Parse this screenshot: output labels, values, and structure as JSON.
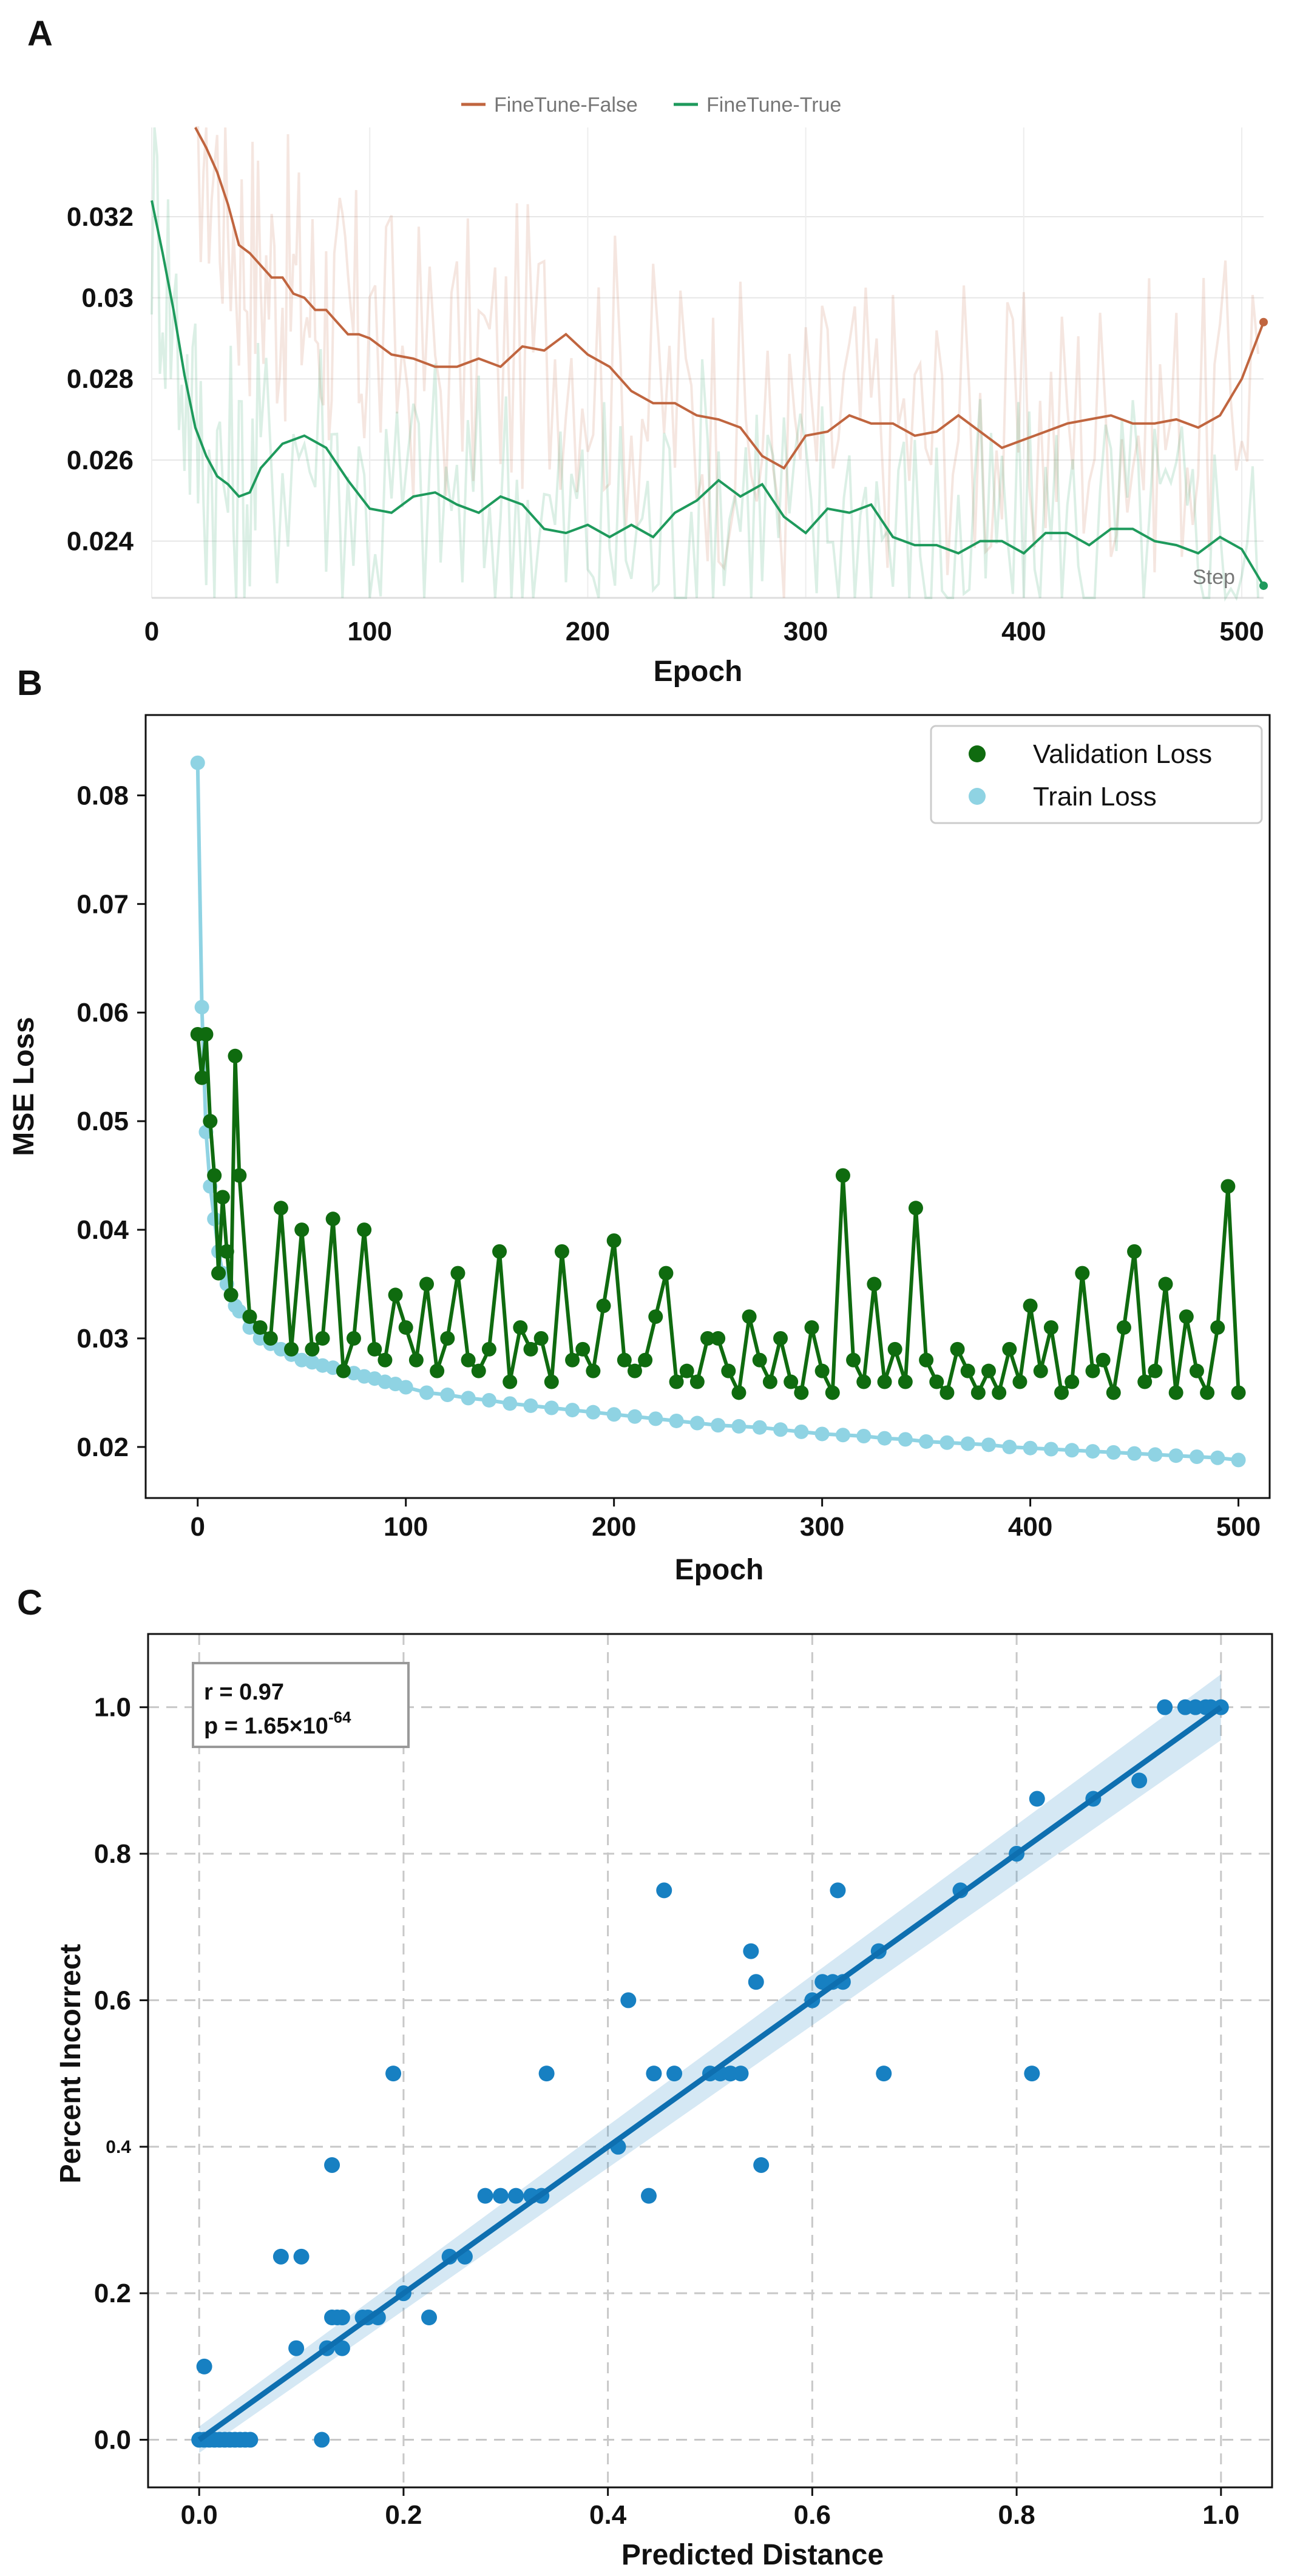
{
  "panels": [
    "A",
    "B",
    "C"
  ],
  "chart_data": [
    {
      "type": "line",
      "panel": "A",
      "title": "",
      "xlabel": "Epoch",
      "ylabel": "",
      "xlim": [
        0,
        510
      ],
      "ylim": [
        0.0226,
        0.0342
      ],
      "x_ticks": [
        0,
        100,
        200,
        300,
        400,
        500
      ],
      "y_ticks": [
        0.024,
        0.026,
        0.028,
        0.03,
        0.032
      ],
      "y_tick_labels": [
        "0.024",
        "0.026",
        "0.028",
        "0.03",
        "0.032"
      ],
      "x_tick_labels": [
        "0",
        "100",
        "200",
        "300",
        "400",
        "500"
      ],
      "legend_position": "top-center",
      "corner_note": "Step",
      "grid": true,
      "series": [
        {
          "name": "FineTune-False",
          "color": "#c0653f",
          "x": [
            20,
            25,
            30,
            35,
            40,
            45,
            50,
            55,
            60,
            65,
            70,
            75,
            80,
            85,
            90,
            95,
            100,
            110,
            120,
            130,
            140,
            150,
            160,
            170,
            180,
            190,
            200,
            210,
            220,
            230,
            240,
            250,
            260,
            270,
            280,
            290,
            300,
            310,
            320,
            330,
            340,
            350,
            360,
            370,
            380,
            390,
            400,
            410,
            420,
            430,
            440,
            450,
            460,
            470,
            480,
            490,
            500,
            510
          ],
          "values": [
            0.0345,
            0.0337,
            0.0331,
            0.0323,
            0.0313,
            0.0311,
            0.0308,
            0.0305,
            0.0305,
            0.0301,
            0.03,
            0.0297,
            0.0297,
            0.0294,
            0.0291,
            0.0291,
            0.029,
            0.0286,
            0.0285,
            0.0283,
            0.0283,
            0.0285,
            0.0283,
            0.0288,
            0.0287,
            0.0291,
            0.0286,
            0.0283,
            0.0277,
            0.0274,
            0.0274,
            0.0271,
            0.027,
            0.0268,
            0.0261,
            0.0258,
            0.0266,
            0.0267,
            0.0271,
            0.0269,
            0.0269,
            0.0266,
            0.0267,
            0.0271,
            0.0267,
            0.0263,
            0.0265,
            0.0267,
            0.0269,
            0.027,
            0.0271,
            0.0269,
            0.0269,
            0.027,
            0.0268,
            0.0271,
            0.028,
            0.0294
          ]
        },
        {
          "name": "FineTune-True",
          "color": "#1e9a5c",
          "x": [
            0,
            5,
            10,
            15,
            20,
            25,
            30,
            35,
            40,
            45,
            50,
            60,
            70,
            80,
            90,
            100,
            110,
            120,
            130,
            140,
            150,
            160,
            170,
            180,
            190,
            200,
            210,
            220,
            230,
            240,
            250,
            260,
            270,
            280,
            290,
            300,
            310,
            320,
            330,
            340,
            350,
            360,
            370,
            380,
            390,
            400,
            410,
            420,
            430,
            440,
            450,
            460,
            470,
            480,
            490,
            500,
            510
          ],
          "values": [
            0.0324,
            0.0311,
            0.0297,
            0.0281,
            0.0268,
            0.0261,
            0.0256,
            0.0254,
            0.0251,
            0.0252,
            0.0258,
            0.0264,
            0.0266,
            0.0263,
            0.0255,
            0.0248,
            0.0247,
            0.0251,
            0.0252,
            0.0249,
            0.0247,
            0.0251,
            0.0249,
            0.0243,
            0.0242,
            0.0244,
            0.0241,
            0.0244,
            0.0241,
            0.0247,
            0.025,
            0.0255,
            0.0251,
            0.0254,
            0.0246,
            0.0242,
            0.0248,
            0.0247,
            0.0249,
            0.0241,
            0.0239,
            0.0239,
            0.0237,
            0.024,
            0.024,
            0.0237,
            0.0242,
            0.0242,
            0.0239,
            0.0243,
            0.0243,
            0.024,
            0.0239,
            0.0237,
            0.0241,
            0.0238,
            0.0229
          ]
        }
      ]
    },
    {
      "type": "line",
      "panel": "B",
      "title": "",
      "xlabel": "Epoch",
      "ylabel": "MSE Loss",
      "xlim": [
        -25,
        515
      ],
      "ylim": [
        0.0153,
        0.0874
      ],
      "x_ticks": [
        0,
        100,
        200,
        300,
        400,
        500
      ],
      "x_tick_labels": [
        "0",
        "100",
        "200",
        "300",
        "400",
        "500"
      ],
      "y_ticks": [
        0.02,
        0.03,
        0.04,
        0.05,
        0.06,
        0.07,
        0.08
      ],
      "y_tick_labels": [
        "0.02",
        "0.03",
        "0.04",
        "0.05",
        "0.06",
        "0.07",
        "0.08"
      ],
      "legend_position": "top-right",
      "grid": false,
      "series": [
        {
          "name": "Validation Loss",
          "color": "#0f6b0f",
          "x": [
            0,
            2,
            4,
            6,
            8,
            10,
            12,
            14,
            16,
            18,
            20,
            25,
            30,
            35,
            40,
            45,
            50,
            55,
            60,
            65,
            70,
            75,
            80,
            85,
            90,
            95,
            100,
            105,
            110,
            115,
            120,
            125,
            130,
            135,
            140,
            145,
            150,
            155,
            160,
            165,
            170,
            175,
            180,
            185,
            190,
            195,
            200,
            205,
            210,
            215,
            220,
            225,
            230,
            235,
            240,
            245,
            250,
            255,
            260,
            265,
            270,
            275,
            280,
            285,
            290,
            295,
            300,
            305,
            310,
            315,
            320,
            325,
            330,
            335,
            340,
            345,
            350,
            355,
            360,
            365,
            370,
            375,
            380,
            385,
            390,
            395,
            400,
            405,
            410,
            415,
            420,
            425,
            430,
            435,
            440,
            445,
            450,
            455,
            460,
            465,
            470,
            475,
            480,
            485,
            490,
            495,
            500
          ],
          "values": [
            0.058,
            0.054,
            0.058,
            0.05,
            0.045,
            0.036,
            0.043,
            0.038,
            0.034,
            0.056,
            0.045,
            0.032,
            0.031,
            0.03,
            0.042,
            0.029,
            0.04,
            0.029,
            0.03,
            0.041,
            0.027,
            0.03,
            0.04,
            0.029,
            0.028,
            0.034,
            0.031,
            0.028,
            0.035,
            0.027,
            0.03,
            0.036,
            0.028,
            0.027,
            0.029,
            0.038,
            0.026,
            0.031,
            0.029,
            0.03,
            0.026,
            0.038,
            0.028,
            0.029,
            0.027,
            0.033,
            0.039,
            0.028,
            0.027,
            0.028,
            0.032,
            0.036,
            0.026,
            0.027,
            0.026,
            0.03,
            0.03,
            0.027,
            0.025,
            0.032,
            0.028,
            0.026,
            0.03,
            0.026,
            0.025,
            0.031,
            0.027,
            0.025,
            0.045,
            0.028,
            0.026,
            0.035,
            0.026,
            0.029,
            0.026,
            0.042,
            0.028,
            0.026,
            0.025,
            0.029,
            0.027,
            0.025,
            0.027,
            0.025,
            0.029,
            0.026,
            0.033,
            0.027,
            0.031,
            0.025,
            0.026,
            0.036,
            0.027,
            0.028,
            0.025,
            0.031,
            0.038,
            0.026,
            0.027,
            0.035,
            0.025,
            0.032,
            0.027,
            0.025,
            0.031,
            0.044,
            0.025
          ]
        },
        {
          "name": "Train Loss",
          "color": "#8fd3e3",
          "x": [
            0,
            2,
            4,
            6,
            8,
            10,
            12,
            14,
            16,
            18,
            20,
            25,
            30,
            35,
            40,
            45,
            50,
            55,
            60,
            65,
            70,
            75,
            80,
            85,
            90,
            95,
            100,
            110,
            120,
            130,
            140,
            150,
            160,
            170,
            180,
            190,
            200,
            210,
            220,
            230,
            240,
            250,
            260,
            270,
            280,
            290,
            300,
            310,
            320,
            330,
            340,
            350,
            360,
            370,
            380,
            390,
            400,
            410,
            420,
            430,
            440,
            450,
            460,
            470,
            480,
            490,
            500
          ],
          "values": [
            0.083,
            0.0605,
            0.049,
            0.044,
            0.041,
            0.038,
            0.036,
            0.035,
            0.034,
            0.033,
            0.0325,
            0.031,
            0.03,
            0.0295,
            0.029,
            0.0285,
            0.028,
            0.0278,
            0.0275,
            0.0273,
            0.027,
            0.0268,
            0.0265,
            0.0263,
            0.026,
            0.0258,
            0.0255,
            0.025,
            0.0248,
            0.0245,
            0.0243,
            0.024,
            0.0238,
            0.0236,
            0.0234,
            0.0232,
            0.023,
            0.0228,
            0.0226,
            0.0224,
            0.0222,
            0.022,
            0.0219,
            0.0218,
            0.0216,
            0.0214,
            0.0212,
            0.0211,
            0.021,
            0.0208,
            0.0207,
            0.0205,
            0.0204,
            0.0203,
            0.0202,
            0.02,
            0.0199,
            0.0198,
            0.0197,
            0.0196,
            0.0195,
            0.0194,
            0.0193,
            0.0192,
            0.0191,
            0.019,
            0.0188
          ]
        }
      ]
    },
    {
      "type": "scatter",
      "panel": "C",
      "title": "",
      "xlabel": "Predicted Distance",
      "ylabel": "Percent Incorrect",
      "xlim": [
        -0.05,
        1.05
      ],
      "ylim": [
        -0.065,
        1.1
      ],
      "x_ticks": [
        0,
        0.2,
        0.4,
        0.6,
        0.8,
        1.0
      ],
      "x_tick_labels": [
        "0.0",
        "0.2",
        "0.4",
        "0.6",
        "0.8",
        "1.0"
      ],
      "y_ticks": [
        0,
        0.2,
        0.4,
        0.6,
        0.8,
        1.0
      ],
      "y_tick_labels": [
        "0.0",
        "0.2",
        "0.4",
        "0.6",
        "0.8",
        "1.0"
      ],
      "grid": true,
      "annotation": {
        "r": "r = 0.97",
        "p_prefix": "p = 1.65×10",
        "p_exp": "-64",
        "position": "top-left"
      },
      "regression": {
        "x": [
          0,
          1.0
        ],
        "y": [
          0.0,
          1.0
        ]
      },
      "color": "#1780c2",
      "points": {
        "x": [
          0,
          0.005,
          0.01,
          0.015,
          0.02,
          0.025,
          0.03,
          0.035,
          0.04,
          0.045,
          0.05,
          0.005,
          0.08,
          0.1,
          0.095,
          0.12,
          0.125,
          0.13,
          0.13,
          0.135,
          0.14,
          0.14,
          0.16,
          0.165,
          0.175,
          0.19,
          0.2,
          0.225,
          0.245,
          0.26,
          0.28,
          0.295,
          0.31,
          0.325,
          0.335,
          0.34,
          0.41,
          0.42,
          0.44,
          0.445,
          0.455,
          0.465,
          0.5,
          0.51,
          0.52,
          0.53,
          0.54,
          0.545,
          0.55,
          0.6,
          0.61,
          0.62,
          0.625,
          0.63,
          0.665,
          0.67,
          0.745,
          0.8,
          0.815,
          0.82,
          0.875,
          0.92,
          0.945,
          0.965,
          0.975,
          0.985,
          0.99,
          1.0
        ],
        "y": [
          0,
          0,
          0,
          0,
          0,
          0,
          0,
          0,
          0,
          0,
          0,
          0.1,
          0.25,
          0.25,
          0.125,
          0,
          0.125,
          0.375,
          0.167,
          0.167,
          0.125,
          0.167,
          0.167,
          0.167,
          0.167,
          0.5,
          0.2,
          0.167,
          0.25,
          0.25,
          0.333,
          0.333,
          0.333,
          0.333,
          0.333,
          0.5,
          0.4,
          0.6,
          0.333,
          0.5,
          0.75,
          0.5,
          0.5,
          0.5,
          0.5,
          0.5,
          0.667,
          0.625,
          0.375,
          0.6,
          0.625,
          0.625,
          0.75,
          0.625,
          0.667,
          0.5,
          0.75,
          0.8,
          0.5,
          0.875,
          0.875,
          0.9,
          1.0,
          1.0,
          1.0,
          1.0,
          1.0,
          1.0
        ]
      }
    }
  ]
}
